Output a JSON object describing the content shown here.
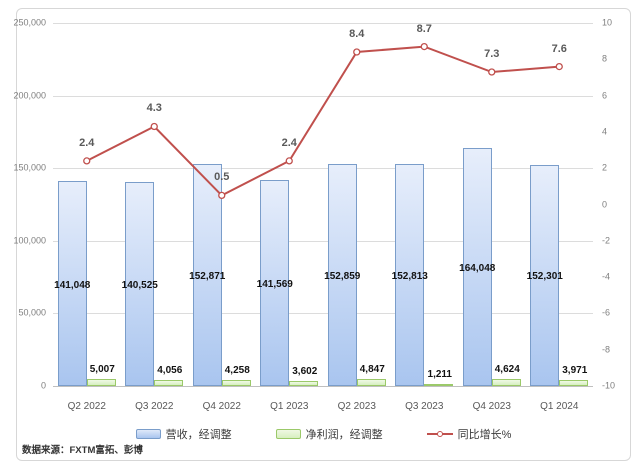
{
  "chart_data": {
    "type": "bar",
    "subtype": "combo-bar-line-dual-axis",
    "title": "",
    "categories": [
      "Q2 2022",
      "Q3 2022",
      "Q4 2022",
      "Q1 2023",
      "Q2 2023",
      "Q3 2023",
      "Q4 2023",
      "Q1 2024"
    ],
    "series": [
      {
        "name": "营收，经调整",
        "kind": "bar",
        "axis": "left",
        "values": [
          141048,
          140525,
          152871,
          141569,
          152859,
          152813,
          164048,
          152301
        ],
        "labels": [
          "141,048",
          "140,525",
          "152,871",
          "141,569",
          "152,859",
          "152,813",
          "164,048",
          "152,301"
        ],
        "fill_top": "#e7eefb",
        "fill_bottom": "#a9c5ef",
        "border_color": "#7a9dca",
        "label_position": "inside-center"
      },
      {
        "name": "净利润，经调整",
        "kind": "bar",
        "axis": "left",
        "values": [
          5007,
          4056,
          4258,
          3602,
          4847,
          1211,
          4624,
          3971
        ],
        "labels": [
          "5,007",
          "4,056",
          "4,258",
          "3,602",
          "4,847",
          "1,211",
          "4,624",
          "3,971"
        ],
        "fill_top": "#f0f9e6",
        "fill_bottom": "#d7efc0",
        "border_color": "#9bc969",
        "label_position": "outside-top"
      },
      {
        "name": "同比增长%",
        "kind": "line",
        "axis": "right",
        "values": [
          2.4,
          4.3,
          0.5,
          2.4,
          8.4,
          8.7,
          7.3,
          7.6
        ],
        "labels": [
          "2.4",
          "4.3",
          "0.5",
          "2.4",
          "8.4",
          "8.7",
          "7.3",
          "7.6"
        ],
        "line_color": "#c0504d",
        "marker": "open-circle",
        "label_position": "above"
      }
    ],
    "left_axis": {
      "min": 0,
      "max": 250000,
      "step": 50000,
      "ticks": [
        "250,000",
        "200,000",
        "150,000",
        "100,000",
        "50,000",
        "0"
      ]
    },
    "right_axis": {
      "min": -10,
      "max": 10,
      "step": 2,
      "ticks": [
        "10",
        "8",
        "6",
        "4",
        "2",
        "0",
        "-2",
        "-4",
        "-6",
        "-8",
        "-10"
      ]
    },
    "grid": true,
    "legend_position": "bottom",
    "legend": [
      {
        "label": "营收，经调整",
        "swatch": "bar-blue"
      },
      {
        "label": "净利润，经调整",
        "swatch": "bar-green"
      },
      {
        "label": "同比增长%",
        "swatch": "line-red"
      }
    ],
    "colors": {
      "gridline": "#dcdcdc",
      "axis_text": "#7f7f7f",
      "category_text": "#595959",
      "bar_value_text": "#121212",
      "line_value_text": "#595959"
    }
  },
  "source_note": "数据来源：FXTM富拓、彭博"
}
